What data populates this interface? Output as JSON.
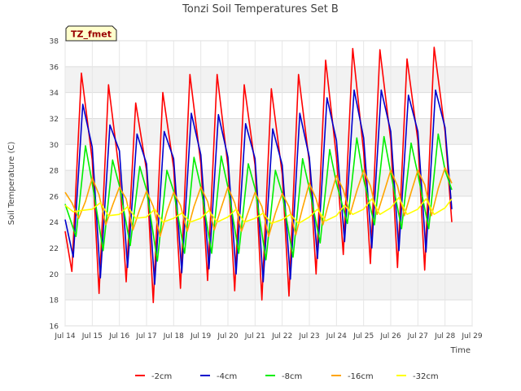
{
  "chart_data": {
    "type": "line",
    "title": "Tonzi Soil Temperatures Set B",
    "xlabel": "Time",
    "ylabel": "Soil Temperature (C)",
    "badge": "TZ_fmet",
    "xlim": [
      14,
      29
    ],
    "ylim": [
      16,
      38
    ],
    "x_ticks": [
      14,
      15,
      16,
      17,
      18,
      19,
      20,
      21,
      22,
      23,
      24,
      25,
      26,
      27,
      28,
      29
    ],
    "x_tick_labels": [
      "Jul 14",
      "Jul 15",
      "Jul 16",
      "Jul 17",
      "Jul 18",
      "Jul 19",
      "Jul 20",
      "Jul 21",
      "Jul 22",
      "Jul 23",
      "Jul 24",
      "Jul 25",
      "Jul 26",
      "Jul 27",
      "Jul 28",
      "Jul 29"
    ],
    "y_ticks": [
      16,
      18,
      20,
      22,
      24,
      26,
      28,
      30,
      32,
      34,
      36,
      38
    ],
    "y_tick_labels": [
      "16",
      "18",
      "20",
      "22",
      "24",
      "26",
      "28",
      "30",
      "32",
      "34",
      "36",
      "38"
    ],
    "grid": true,
    "legend_position": "bottom",
    "series": [
      {
        "name": "-2cm",
        "color": "#ff0000",
        "x": [
          14.0,
          14.25,
          14.6,
          15.0,
          15.25,
          15.6,
          16.0,
          16.25,
          16.6,
          17.0,
          17.25,
          17.6,
          18.0,
          18.25,
          18.6,
          19.0,
          19.25,
          19.6,
          20.0,
          20.25,
          20.6,
          21.0,
          21.25,
          21.6,
          22.0,
          22.25,
          22.6,
          23.0,
          23.25,
          23.6,
          24.0,
          24.25,
          24.6,
          25.0,
          25.25,
          25.6,
          26.0,
          26.25,
          26.6,
          27.0,
          27.25,
          27.6,
          28.0,
          28.25
        ],
        "y": [
          23.3,
          20.2,
          35.5,
          28.8,
          18.5,
          34.6,
          27.8,
          19.4,
          33.2,
          28.0,
          17.8,
          34.0,
          28.2,
          18.9,
          35.4,
          28.5,
          19.5,
          35.4,
          28.3,
          18.7,
          34.6,
          28.4,
          18.0,
          34.3,
          27.7,
          18.3,
          35.4,
          28.6,
          20.0,
          36.5,
          29.0,
          21.5,
          37.4,
          29.4,
          20.8,
          37.3,
          30.3,
          20.5,
          36.6,
          30.3,
          20.3,
          37.5,
          31.0,
          24.0
        ]
      },
      {
        "name": "-4cm",
        "color": "#0000cc",
        "x": [
          14.0,
          14.3,
          14.65,
          15.0,
          15.3,
          15.65,
          16.0,
          16.3,
          16.65,
          17.0,
          17.3,
          17.65,
          18.0,
          18.3,
          18.65,
          19.0,
          19.3,
          19.65,
          20.0,
          20.3,
          20.65,
          21.0,
          21.3,
          21.65,
          22.0,
          22.3,
          22.65,
          23.0,
          23.3,
          23.65,
          24.0,
          24.3,
          24.65,
          25.0,
          25.3,
          25.65,
          26.0,
          26.3,
          26.65,
          27.0,
          27.3,
          27.65,
          28.0,
          28.25
        ],
        "y": [
          24.2,
          21.3,
          33.1,
          29.8,
          19.7,
          31.5,
          29.5,
          20.5,
          30.8,
          28.5,
          19.2,
          31.0,
          28.9,
          20.1,
          32.4,
          29.2,
          20.4,
          32.3,
          29.0,
          20.0,
          31.6,
          28.9,
          19.4,
          31.2,
          28.4,
          19.6,
          32.4,
          29.0,
          21.2,
          33.6,
          30.3,
          22.5,
          34.2,
          30.5,
          22.0,
          34.2,
          31.0,
          21.8,
          33.8,
          31.0,
          21.7,
          34.2,
          31.3,
          25.0
        ]
      },
      {
        "name": "-8cm",
        "color": "#00ee00",
        "x": [
          14.0,
          14.4,
          14.75,
          15.0,
          15.4,
          15.75,
          16.0,
          16.4,
          16.75,
          17.0,
          17.4,
          17.75,
          18.0,
          18.4,
          18.75,
          19.0,
          19.4,
          19.75,
          20.0,
          20.4,
          20.75,
          21.0,
          21.4,
          21.75,
          22.0,
          22.4,
          22.75,
          23.0,
          23.4,
          23.75,
          24.0,
          24.4,
          24.75,
          25.0,
          25.4,
          25.75,
          26.0,
          26.4,
          26.75,
          27.0,
          27.4,
          27.75,
          28.0,
          28.25
        ],
        "y": [
          25.4,
          22.9,
          29.9,
          27.0,
          21.8,
          28.8,
          26.8,
          22.2,
          28.3,
          26.5,
          21.0,
          28.0,
          26.4,
          21.6,
          29.0,
          26.7,
          21.6,
          29.1,
          26.7,
          21.6,
          28.5,
          26.6,
          21.1,
          28.0,
          26.2,
          21.3,
          28.9,
          26.6,
          22.4,
          29.6,
          27.0,
          23.9,
          30.5,
          27.3,
          23.8,
          30.6,
          27.8,
          23.5,
          30.1,
          27.7,
          23.5,
          30.8,
          28.0,
          26.5
        ]
      },
      {
        "name": "-16cm",
        "color": "#ffa500",
        "x": [
          14.0,
          14.25,
          14.5,
          14.75,
          15.0,
          15.25,
          15.5,
          15.75,
          16.0,
          16.25,
          16.5,
          16.75,
          17.0,
          17.25,
          17.5,
          17.75,
          18.0,
          18.25,
          18.5,
          18.75,
          19.0,
          19.25,
          19.5,
          19.75,
          20.0,
          20.25,
          20.5,
          20.75,
          21.0,
          21.25,
          21.5,
          21.75,
          22.0,
          22.25,
          22.5,
          22.75,
          23.0,
          23.25,
          23.5,
          23.75,
          24.0,
          24.25,
          24.5,
          24.75,
          25.0,
          25.25,
          25.5,
          25.75,
          26.0,
          26.25,
          26.5,
          26.75,
          27.0,
          27.25,
          27.5,
          27.75,
          28.0,
          28.25
        ],
        "y": [
          26.3,
          25.5,
          24.3,
          25.6,
          27.4,
          26.1,
          23.8,
          25.3,
          26.7,
          25.8,
          23.4,
          25.0,
          26.4,
          25.2,
          22.9,
          24.8,
          26.3,
          25.3,
          23.3,
          25.2,
          26.7,
          25.6,
          23.4,
          25.1,
          26.7,
          25.5,
          23.3,
          24.8,
          26.3,
          25.2,
          22.9,
          24.7,
          26.2,
          25.2,
          23.0,
          25.1,
          27.0,
          25.8,
          23.8,
          25.8,
          27.6,
          26.5,
          24.6,
          26.4,
          28.0,
          26.8,
          24.6,
          26.3,
          28.0,
          26.8,
          24.5,
          26.3,
          28.0,
          26.9,
          24.5,
          26.6,
          28.2,
          27.0
        ]
      },
      {
        "name": "-32cm",
        "color": "#ffff00",
        "x": [
          14.0,
          14.3,
          14.6,
          15.0,
          15.3,
          15.6,
          16.0,
          16.3,
          16.6,
          17.0,
          17.3,
          17.6,
          18.0,
          18.3,
          18.6,
          19.0,
          19.3,
          19.6,
          20.0,
          20.3,
          20.6,
          21.0,
          21.3,
          21.6,
          22.0,
          22.3,
          22.6,
          23.0,
          23.3,
          23.6,
          24.0,
          24.3,
          24.6,
          25.0,
          25.3,
          25.6,
          26.0,
          26.3,
          26.6,
          27.0,
          27.3,
          27.6,
          28.0,
          28.25
        ],
        "y": [
          25.3,
          24.8,
          24.9,
          25.0,
          25.5,
          24.5,
          24.6,
          25.2,
          24.3,
          24.4,
          25.0,
          24.0,
          24.3,
          24.7,
          24.0,
          24.3,
          24.9,
          24.0,
          24.4,
          25.0,
          24.0,
          24.3,
          24.7,
          23.9,
          24.2,
          24.6,
          23.9,
          24.4,
          25.0,
          24.1,
          24.5,
          25.3,
          24.6,
          25.0,
          25.8,
          24.6,
          25.1,
          25.9,
          24.6,
          25.0,
          25.8,
          24.6,
          25.1,
          25.8
        ]
      }
    ]
  }
}
